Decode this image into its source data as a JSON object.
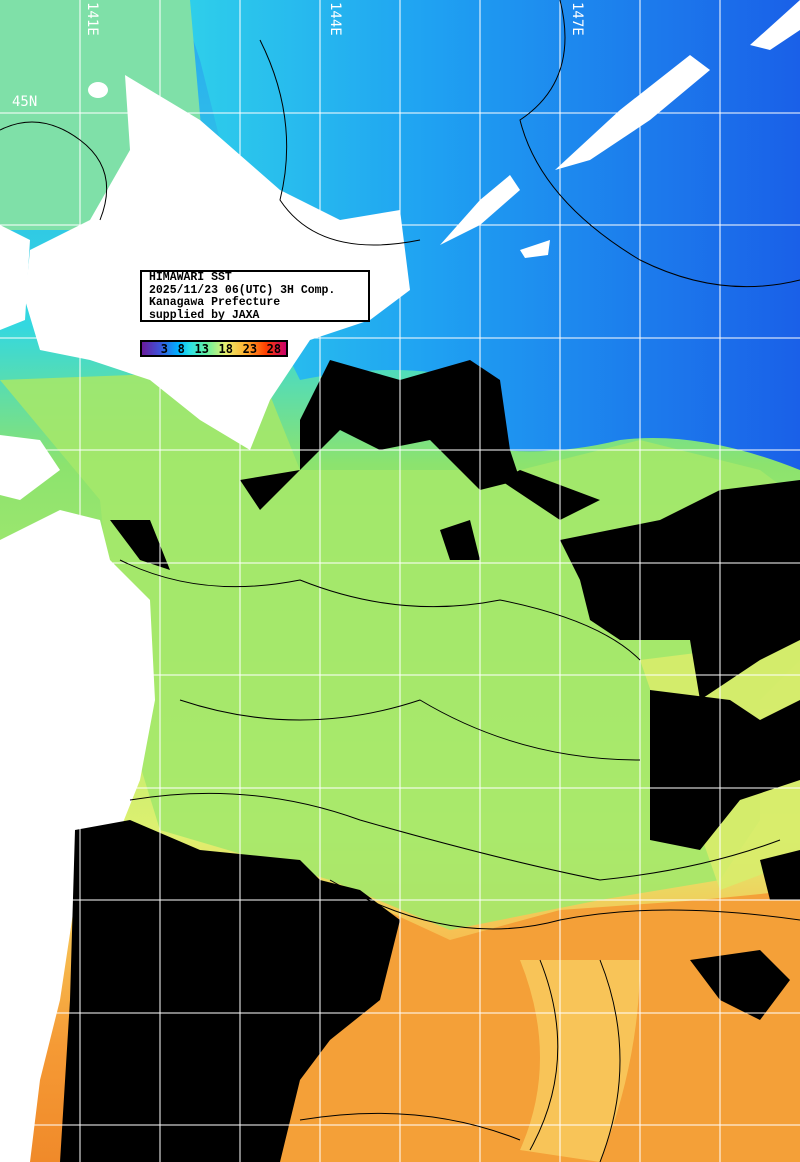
{
  "info": {
    "title": "HIMAWARI SST",
    "datetime": "2025/11/23 06(UTC) 3H Comp.",
    "prefecture": "Kanagawa Prefecture",
    "credit": "supplied by JAXA"
  },
  "colorbar": {
    "ticks": [
      "3",
      "8",
      "13",
      "18",
      "23",
      "28"
    ],
    "unit_colors": [
      "#6a1b9a",
      "#3f51d8",
      "#00b0ff",
      "#29e0e8",
      "#66f0a0",
      "#e8f070",
      "#ffb030",
      "#ff4000",
      "#c8006a"
    ]
  },
  "grid_labels": {
    "lon_141": "141E",
    "lon_144": "144E",
    "lon_147": "147E",
    "lat_45": "45N"
  },
  "colors": {
    "land": "#ffffff",
    "cloud": "#000000",
    "cold_water": "#1e88ff",
    "mid_water": "#8ee86a",
    "warm_water": "#f5a030",
    "grid": "#ffffff"
  }
}
